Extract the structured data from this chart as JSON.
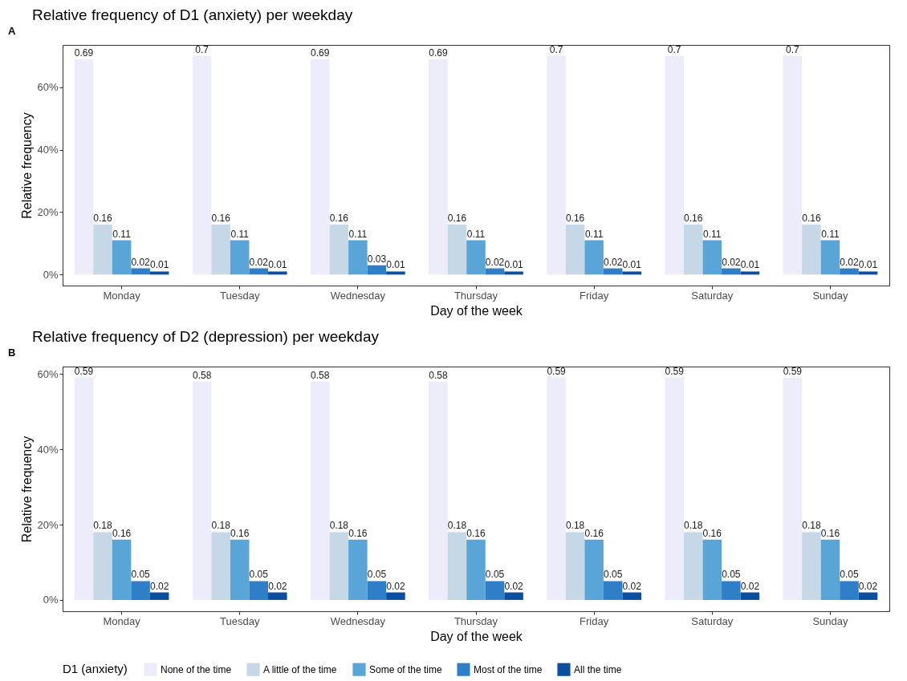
{
  "chart_data": [
    {
      "type": "bar",
      "title": "Relative frequency of D1 (anxiety) per weekday",
      "xlabel": "Day of the week",
      "ylabel": "Relative frequency",
      "annotations": [
        "A"
      ],
      "categories": [
        "Monday",
        "Tuesday",
        "Wednesday",
        "Thursday",
        "Friday",
        "Saturday",
        "Sunday"
      ],
      "series": [
        {
          "name": "None of the time",
          "color": "#ececfb",
          "values": [
            0.69,
            0.7,
            0.69,
            0.69,
            0.7,
            0.7,
            0.7
          ]
        },
        {
          "name": "A little of the time",
          "color": "#c6d8e6",
          "values": [
            0.16,
            0.16,
            0.16,
            0.16,
            0.16,
            0.16,
            0.16
          ]
        },
        {
          "name": "Some of the time",
          "color": "#5aa5d8",
          "values": [
            0.11,
            0.11,
            0.11,
            0.11,
            0.11,
            0.11,
            0.11
          ]
        },
        {
          "name": "Most of the time",
          "color": "#2f7fc8",
          "values": [
            0.02,
            0.02,
            0.03,
            0.02,
            0.02,
            0.02,
            0.02
          ]
        },
        {
          "name": "All the time",
          "color": "#0a4fa0",
          "values": [
            0.01,
            0.01,
            0.01,
            0.01,
            0.01,
            0.01,
            0.01
          ]
        }
      ],
      "ylim": [
        -0.035,
        0.735
      ],
      "yticks": [
        {
          "value": 0,
          "label": "0%"
        },
        {
          "value": 0.2,
          "label": "20%"
        },
        {
          "value": 0.4,
          "label": "40%"
        },
        {
          "value": 0.6,
          "label": "60%"
        }
      ],
      "data_labels": true,
      "grid": false,
      "legend": "bottom"
    },
    {
      "type": "bar",
      "title": "Relative frequency of D2 (depression) per weekday",
      "xlabel": "Day of the week",
      "ylabel": "Relative frequency",
      "legend_title": "D1 (anxiety)",
      "annotations": [
        "B"
      ],
      "categories": [
        "Monday",
        "Tuesday",
        "Wednesday",
        "Thursday",
        "Friday",
        "Saturday",
        "Sunday"
      ],
      "series": [
        {
          "name": "None of the time",
          "color": "#ececfb",
          "values": [
            0.59,
            0.58,
            0.58,
            0.58,
            0.59,
            0.59,
            0.59
          ]
        },
        {
          "name": "A little of the time",
          "color": "#c6d8e6",
          "values": [
            0.18,
            0.18,
            0.18,
            0.18,
            0.18,
            0.18,
            0.18
          ]
        },
        {
          "name": "Some of the time",
          "color": "#5aa5d8",
          "values": [
            0.16,
            0.16,
            0.16,
            0.16,
            0.16,
            0.16,
            0.16
          ]
        },
        {
          "name": "Most of the time",
          "color": "#2f7fc8",
          "values": [
            0.05,
            0.05,
            0.05,
            0.05,
            0.05,
            0.05,
            0.05
          ]
        },
        {
          "name": "All the time",
          "color": "#0a4fa0",
          "values": [
            0.02,
            0.02,
            0.02,
            0.02,
            0.02,
            0.02,
            0.02
          ]
        }
      ],
      "ylim": [
        -0.03,
        0.62
      ],
      "yticks": [
        {
          "value": 0,
          "label": "0%"
        },
        {
          "value": 0.2,
          "label": "20%"
        },
        {
          "value": 0.4,
          "label": "40%"
        },
        {
          "value": 0.6,
          "label": "60%"
        }
      ],
      "data_labels": true,
      "grid": false,
      "legend": "bottom"
    }
  ]
}
